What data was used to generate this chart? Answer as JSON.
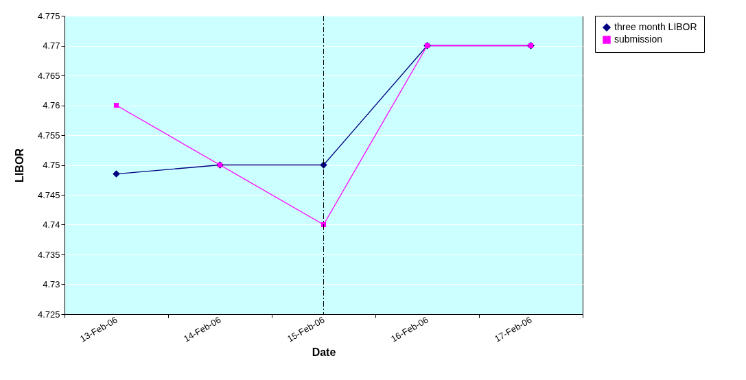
{
  "chart_data": {
    "type": "line",
    "xlabel": "Date",
    "ylabel": "LIBOR",
    "categories": [
      "13-Feb-06",
      "14-Feb-06",
      "15-Feb-06",
      "16-Feb-06",
      "17-Feb-06"
    ],
    "series": [
      {
        "name": "three month LIBOR",
        "color": "#000080",
        "marker": "diamond",
        "values": [
          4.7485,
          4.75,
          4.75,
          4.77,
          4.77
        ]
      },
      {
        "name": "submission",
        "color": "#ff00ff",
        "marker": "square",
        "values": [
          4.76,
          4.75,
          4.74,
          4.77,
          4.77
        ]
      }
    ],
    "ylim": [
      4.725,
      4.775
    ],
    "yticks": [
      4.725,
      4.73,
      4.735,
      4.74,
      4.745,
      4.75,
      4.755,
      4.76,
      4.765,
      4.77,
      4.775
    ],
    "grid": "y",
    "legend": "right",
    "ref_lines": [
      {
        "axis": "x",
        "value": "15-Feb-06",
        "color": "#000000",
        "line_style": "dashed"
      }
    ]
  }
}
